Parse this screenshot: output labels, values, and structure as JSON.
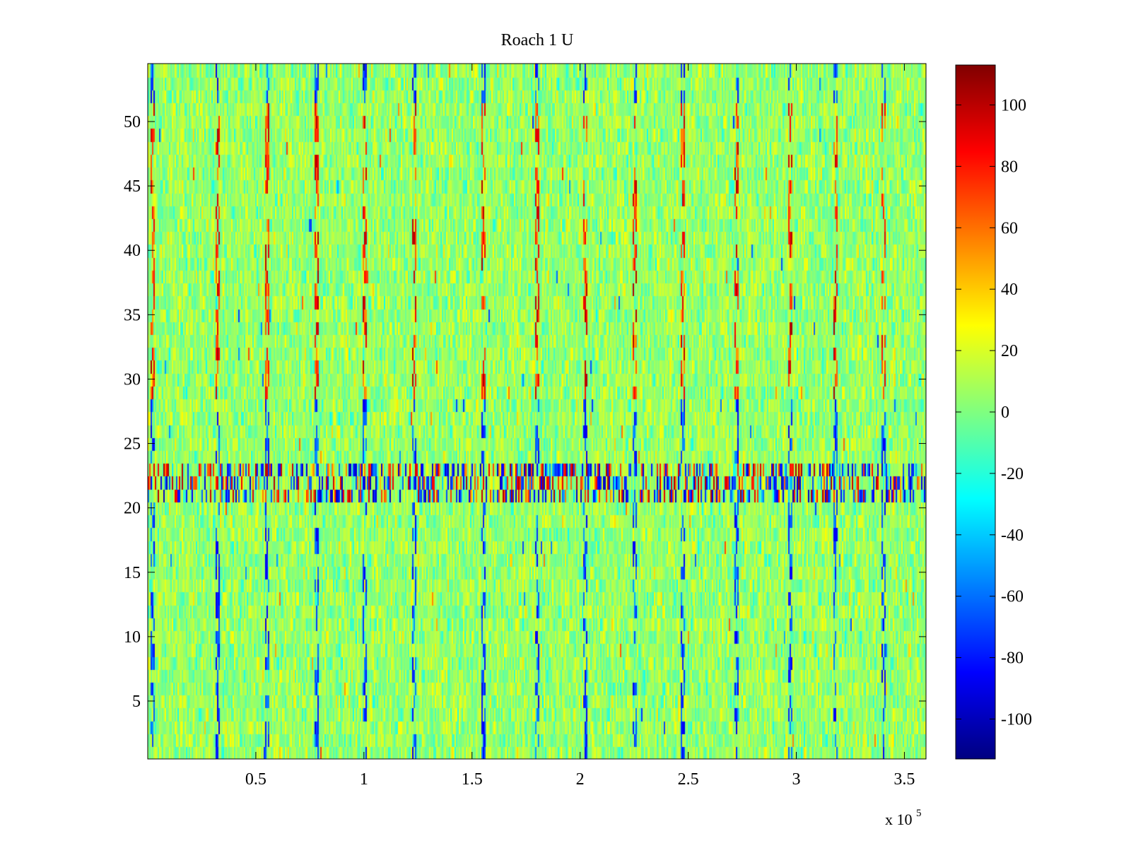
{
  "chart_data": {
    "type": "heatmap",
    "title": "Roach 1 U",
    "xlabel": "",
    "ylabel": "",
    "x_exponent_label": {
      "base": "x 10",
      "exponent": "5"
    },
    "xlim": [
      0,
      360000
    ],
    "ylim": [
      0.5,
      54.5
    ],
    "x_ticks": [
      {
        "value": 50000,
        "label": "0.5"
      },
      {
        "value": 100000,
        "label": "1"
      },
      {
        "value": 150000,
        "label": "1.5"
      },
      {
        "value": 200000,
        "label": "2"
      },
      {
        "value": 250000,
        "label": "2.5"
      },
      {
        "value": 300000,
        "label": "3"
      },
      {
        "value": 350000,
        "label": "3.5"
      }
    ],
    "y_ticks": [
      {
        "value": 5,
        "label": "5"
      },
      {
        "value": 10,
        "label": "10"
      },
      {
        "value": 15,
        "label": "15"
      },
      {
        "value": 20,
        "label": "20"
      },
      {
        "value": 25,
        "label": "25"
      },
      {
        "value": 30,
        "label": "30"
      },
      {
        "value": 35,
        "label": "35"
      },
      {
        "value": 40,
        "label": "40"
      },
      {
        "value": 45,
        "label": "45"
      },
      {
        "value": 50,
        "label": "50"
      }
    ],
    "rows": 54,
    "grid": false,
    "colormap": "jet",
    "colorbar": {
      "placement": "right",
      "clim": [
        -113,
        113
      ],
      "ticks": [
        {
          "value": 100,
          "label": "100"
        },
        {
          "value": 80,
          "label": "80"
        },
        {
          "value": 60,
          "label": "60"
        },
        {
          "value": 40,
          "label": "40"
        },
        {
          "value": 20,
          "label": "20"
        },
        {
          "value": 0,
          "label": "0"
        },
        {
          "value": -20,
          "label": "-20"
        },
        {
          "value": -40,
          "label": "-40"
        },
        {
          "value": -60,
          "label": "-60"
        },
        {
          "value": -80,
          "label": "-80"
        },
        {
          "value": -100,
          "label": "-100"
        }
      ]
    },
    "high_variance_rows": [
      21,
      22,
      23
    ],
    "spike_x_positions": [
      2000,
      32000,
      55000,
      78000,
      100000,
      123000,
      155000,
      180000,
      202000,
      225000,
      247000,
      272000,
      297000,
      318000,
      340000
    ]
  }
}
